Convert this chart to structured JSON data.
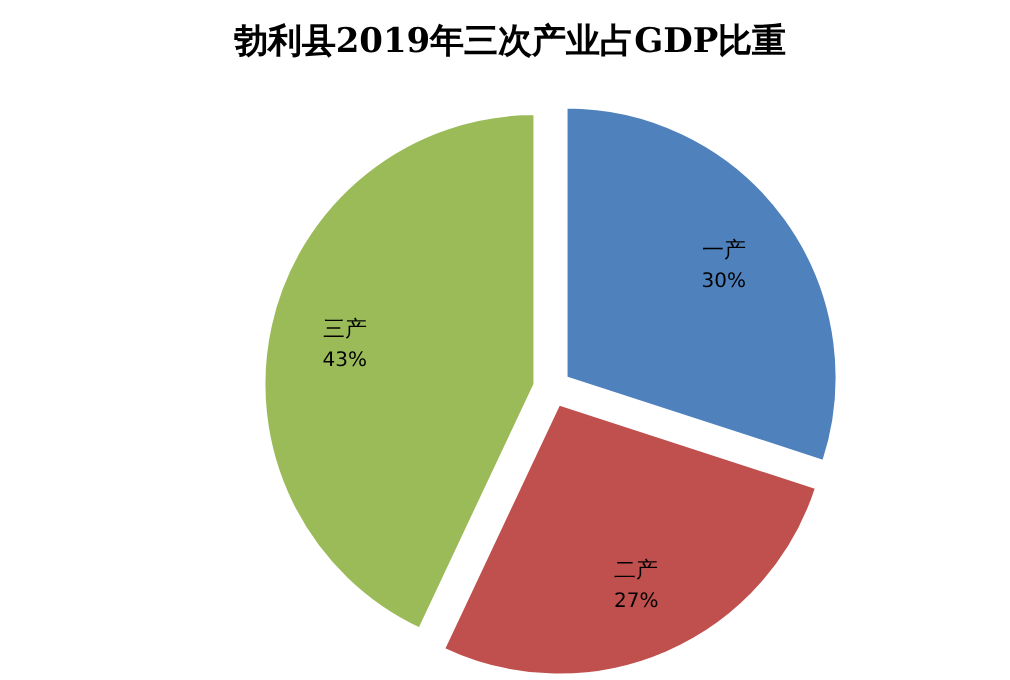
{
  "chart_data": {
    "type": "pie",
    "title": "勃利县2019年三次产业占GDP比重",
    "categories": [
      "一产",
      "二产",
      "三产"
    ],
    "values": [
      30,
      27,
      43
    ],
    "colors": [
      "#4f81bd",
      "#c0504d",
      "#9bbb59"
    ],
    "value_labels": [
      "30%",
      "27%",
      "43%"
    ]
  }
}
